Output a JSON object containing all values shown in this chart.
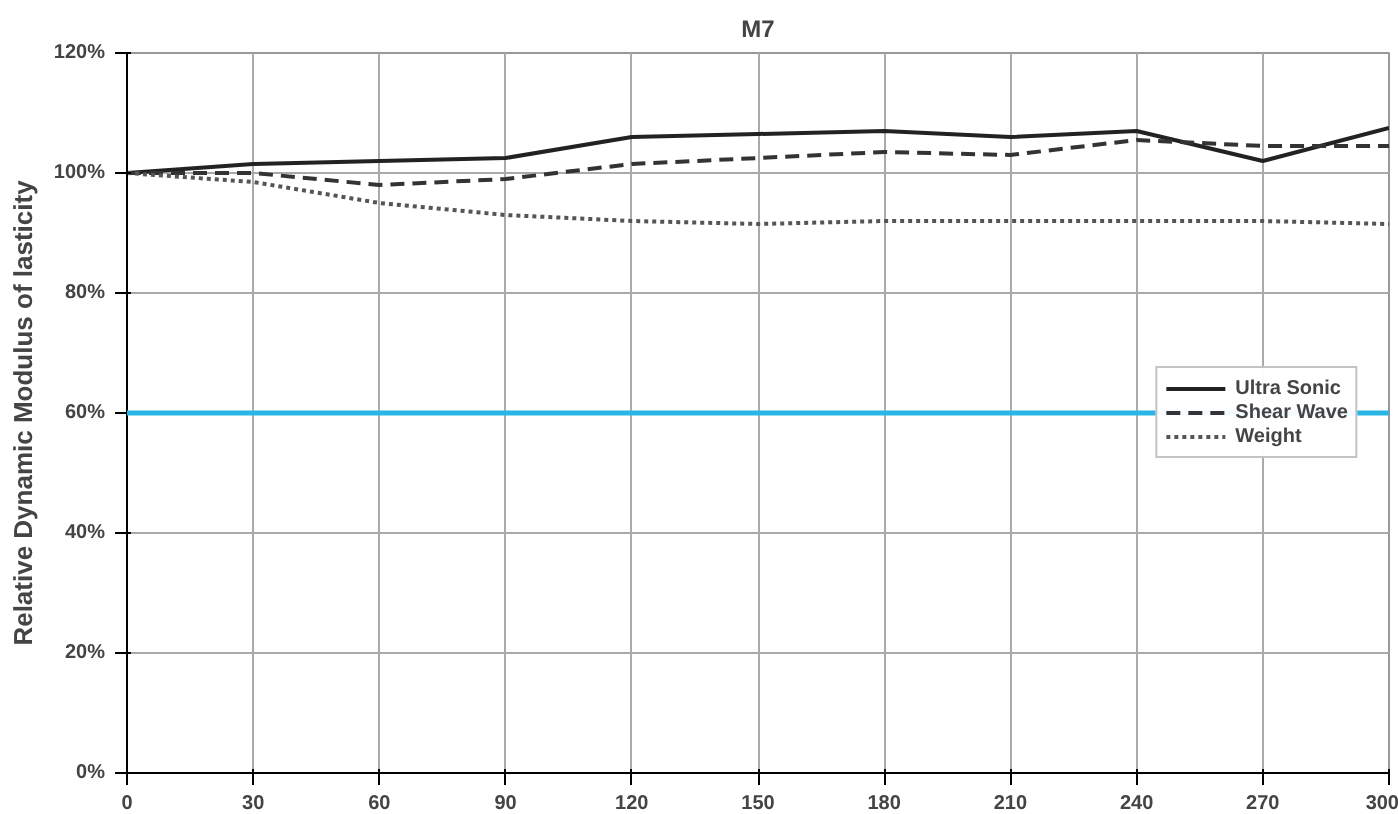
{
  "chart_data": {
    "type": "line",
    "title": "M7",
    "ylabel": "Relative Dynamic Modulus of lasticity",
    "x": [
      0,
      30,
      60,
      90,
      120,
      150,
      180,
      210,
      240,
      270,
      300
    ],
    "series": [
      {
        "name": "Ultra Sonic",
        "color": "#222222",
        "line_style": "solid",
        "values": [
          100,
          101.5,
          102,
          102.5,
          106,
          106.5,
          107,
          106,
          107,
          102,
          107.5
        ]
      },
      {
        "name": "Shear Wave",
        "color": "#333333",
        "line_style": "dashed",
        "values": [
          100,
          100,
          98,
          99,
          101.5,
          102.5,
          103.5,
          103,
          105.5,
          104.5,
          104.5
        ]
      },
      {
        "name": "Weight",
        "color": "#555555",
        "line_style": "dotted",
        "values": [
          100,
          98.5,
          95,
          93,
          92,
          91.5,
          92,
          92,
          92,
          92,
          91.5
        ]
      }
    ],
    "xlim": [
      0,
      300
    ],
    "xticks": [
      0,
      30,
      60,
      90,
      120,
      150,
      180,
      210,
      240,
      270,
      300
    ],
    "ylim": [
      0,
      120
    ],
    "yticks": [
      {
        "value": 0,
        "label": "0%"
      },
      {
        "value": 20,
        "label": "20%"
      },
      {
        "value": 40,
        "label": "40%"
      },
      {
        "value": 60,
        "label": "60%"
      },
      {
        "value": 80,
        "label": "80%"
      },
      {
        "value": 100,
        "label": "100%"
      },
      {
        "value": 120,
        "label": "120%"
      }
    ],
    "ref_lines": [
      {
        "axis": "y",
        "value": 60,
        "color": "#29b6e6"
      }
    ],
    "grid": true,
    "legend": "right",
    "marker": "none"
  }
}
